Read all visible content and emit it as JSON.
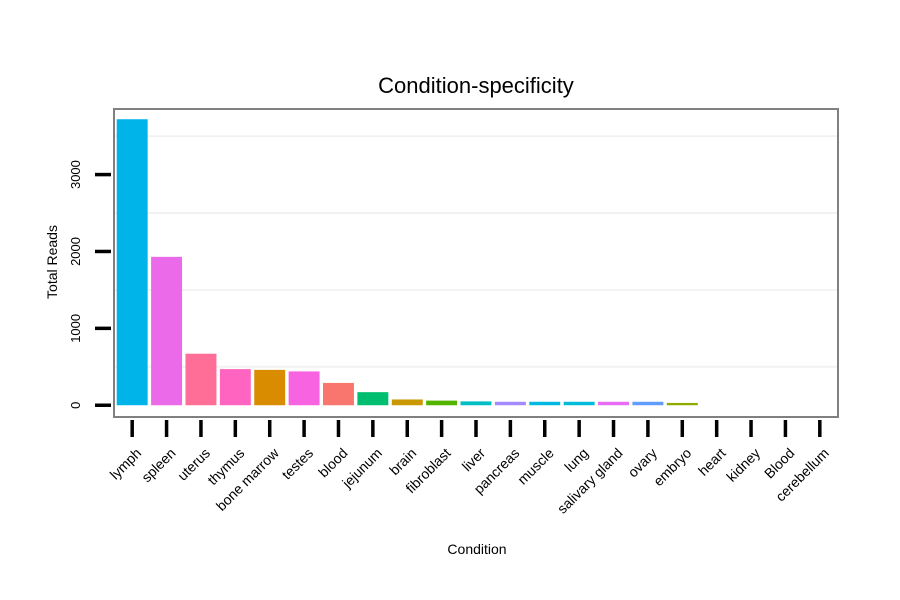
{
  "chart_data": {
    "type": "bar",
    "title": "Condition-specificity",
    "xlabel": "Condition",
    "ylabel": "Total Reads",
    "ylim": [
      -140,
      3840
    ],
    "yticks": [
      0,
      1000,
      2000,
      3000
    ],
    "gridlines": [
      500,
      1500,
      2500,
      3500
    ],
    "categories": [
      "lymph",
      "spleen",
      "uterus",
      "thymus",
      "bone marrow",
      "testes",
      "blood",
      "jejunum",
      "brain",
      "fibroblast",
      "liver",
      "pancreas",
      "muscle",
      "lung",
      "salivary gland",
      "ovary",
      "embryo",
      "heart",
      "kidney",
      "Blood",
      "cerebellum"
    ],
    "values": [
      3720,
      1930,
      670,
      470,
      460,
      440,
      290,
      170,
      75,
      60,
      50,
      45,
      45,
      45,
      45,
      45,
      30,
      0,
      0,
      0,
      0
    ],
    "colors": [
      "#00B4EA",
      "#EA6AEA",
      "#FF6E96",
      "#FF65C0",
      "#D98C00",
      "#F763E0",
      "#F8766D",
      "#00BE70",
      "#C99800",
      "#53B400",
      "#00BFC4",
      "#A58AFF",
      "#00B9E3",
      "#00BCD8",
      "#E76BF3",
      "#619CFF",
      "#8EAB00",
      "#00C08B",
      "#00A9FF",
      "#FF62BC",
      "#7CAE00"
    ]
  }
}
